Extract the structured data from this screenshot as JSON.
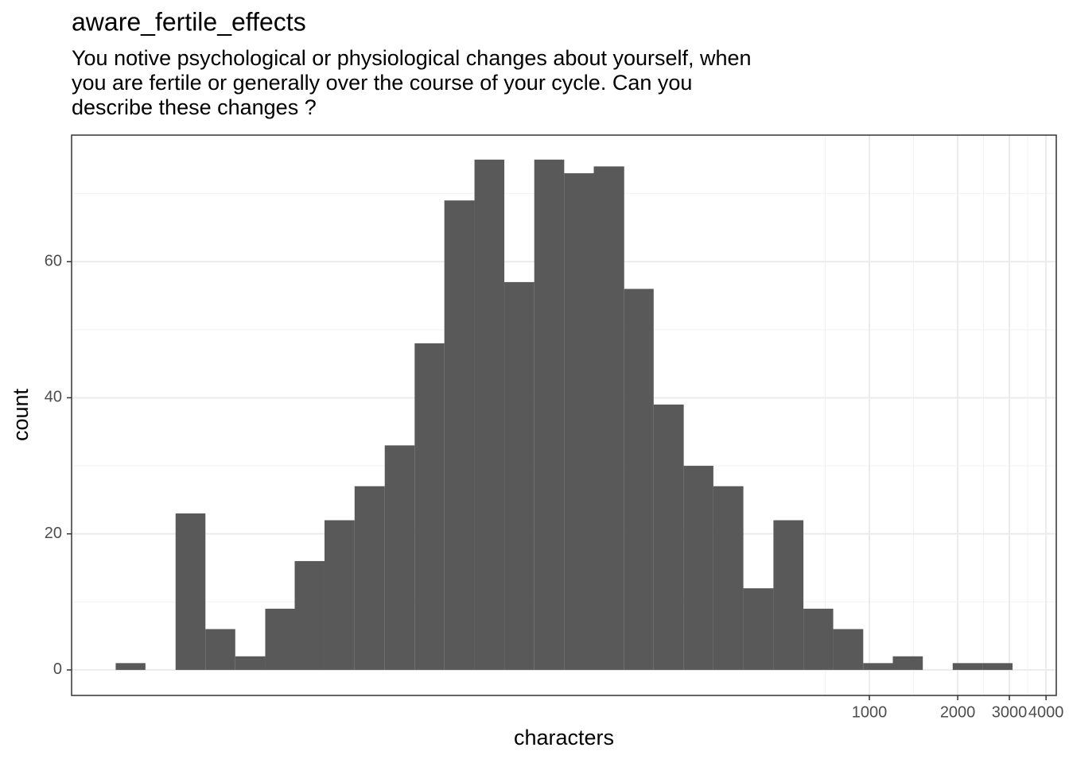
{
  "chart_data": {
    "type": "histogram",
    "title": "aware_fertile_effects",
    "subtitle": [
      "You notive psychological or physiological changes about yourself, when",
      "you are fertile or generally over the course of your cycle. Can you",
      "describe these changes ?"
    ],
    "x_label": "characters",
    "y_label": "count",
    "bins": [
      2.7,
      3.41,
      4.32,
      5.46,
      6.9,
      8.73,
      11.0,
      13.9,
      17.6,
      22.3,
      28.2,
      35.6,
      45.1,
      57.0,
      72.1,
      91.2,
      115,
      146,
      184,
      233,
      294,
      372,
      471,
      596,
      753,
      953,
      1202,
      1521,
      1923,
      2432,
      3076
    ],
    "values": [
      1,
      0,
      23,
      6,
      2,
      9,
      16,
      22,
      27,
      33,
      48,
      69,
      75,
      57,
      75,
      73,
      74,
      56,
      39,
      30,
      27,
      12,
      22,
      9,
      6,
      1,
      2,
      0,
      1,
      1
    ],
    "color": "#595959",
    "x_log": true,
    "xlim": [
      1.91,
      4335
    ],
    "xticks": [
      1000,
      2000,
      3000,
      4000
    ],
    "ylim": [
      -3.75,
      78.6
    ],
    "yticks": [
      0,
      20,
      40,
      60
    ],
    "grid": true
  }
}
